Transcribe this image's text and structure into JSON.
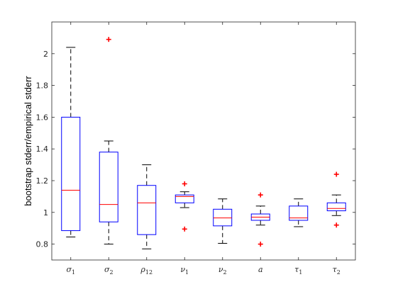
{
  "chart_data": {
    "type": "boxplot",
    "title": "",
    "xlabel": "",
    "ylabel": "bootstrap stderr/empirical stderr",
    "ylim": [
      0.7,
      2.2
    ],
    "yticks": [
      0.8,
      1,
      1.2,
      1.4,
      1.6,
      1.8,
      2
    ],
    "ytick_labels": [
      "0.8",
      "1",
      "1.2",
      "1.4",
      "1.6",
      "1.8",
      "2"
    ],
    "grid": false,
    "categories": [
      {
        "main": "σ",
        "sub": "1"
      },
      {
        "main": "σ",
        "sub": "2"
      },
      {
        "main": "ρ",
        "sub": "12"
      },
      {
        "main": "ν",
        "sub": "1"
      },
      {
        "main": "ν",
        "sub": "2"
      },
      {
        "main": "a",
        "sub": ""
      },
      {
        "main": "τ",
        "sub": "1"
      },
      {
        "main": "τ",
        "sub": "2"
      }
    ],
    "boxes": [
      {
        "whisker_low": 0.845,
        "q1": 0.885,
        "median": 1.14,
        "q3": 1.6,
        "whisker_high": 2.04,
        "outliers": []
      },
      {
        "whisker_low": 0.8,
        "q1": 0.94,
        "median": 1.05,
        "q3": 1.38,
        "whisker_high": 1.45,
        "outliers": [
          2.09
        ]
      },
      {
        "whisker_low": 0.77,
        "q1": 0.86,
        "median": 1.06,
        "q3": 1.17,
        "whisker_high": 1.3,
        "outliers": []
      },
      {
        "whisker_low": 1.03,
        "q1": 1.06,
        "median": 1.1,
        "q3": 1.11,
        "whisker_high": 1.13,
        "outliers": [
          1.18,
          0.895
        ]
      },
      {
        "whisker_low": 0.805,
        "q1": 0.915,
        "median": 0.965,
        "q3": 1.02,
        "whisker_high": 1.085,
        "outliers": []
      },
      {
        "whisker_low": 0.92,
        "q1": 0.95,
        "median": 0.97,
        "q3": 0.99,
        "whisker_high": 1.04,
        "outliers": [
          1.11,
          0.8
        ]
      },
      {
        "whisker_low": 0.91,
        "q1": 0.95,
        "median": 0.965,
        "q3": 1.04,
        "whisker_high": 1.085,
        "outliers": []
      },
      {
        "whisker_low": 0.98,
        "q1": 1.01,
        "median": 1.025,
        "q3": 1.06,
        "whisker_high": 1.11,
        "outliers": [
          1.24,
          0.92
        ]
      }
    ],
    "colors": {
      "box": "#0000ff",
      "median": "#ff0000",
      "whisker": "#000000",
      "outlier": "#ff0000",
      "axis": "#262626"
    }
  }
}
